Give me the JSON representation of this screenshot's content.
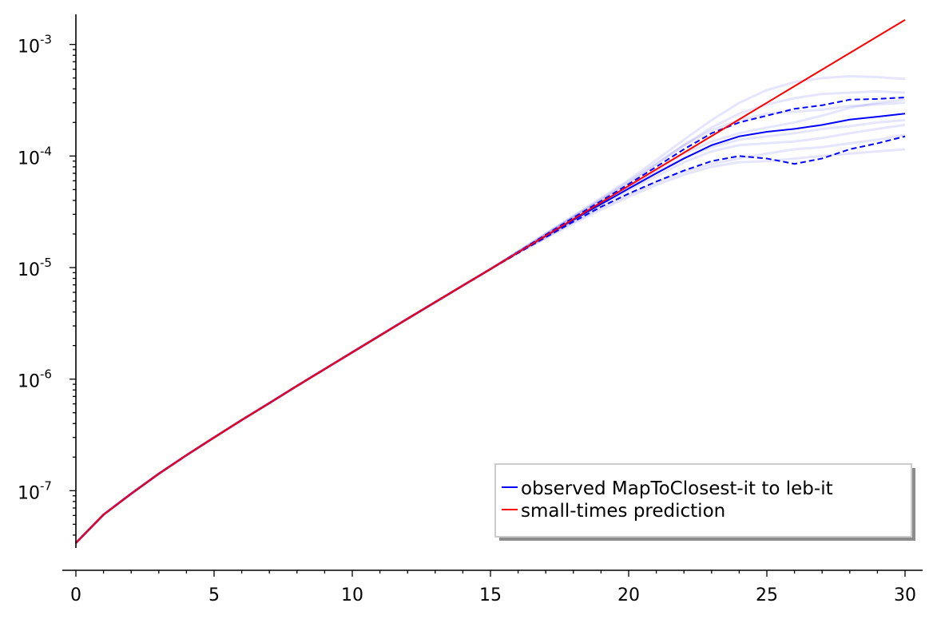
{
  "chart_data": {
    "type": "line",
    "title": "",
    "xlabel": "",
    "ylabel": "",
    "x_scale": "linear",
    "y_scale": "log",
    "xlim": [
      -0.6,
      30.6
    ],
    "ylim": [
      2e-08,
      0.0018
    ],
    "x_ticks_major": [
      0,
      5,
      10,
      15,
      20,
      25,
      30
    ],
    "x_tick_labels": [
      "0",
      "5",
      "10",
      "15",
      "20",
      "25",
      "30"
    ],
    "y_ticks_major": [
      1e-07,
      1e-06,
      1e-05,
      0.0001,
      0.001
    ],
    "y_tick_labels": [
      {
        "base": "10",
        "exp": "-7"
      },
      {
        "base": "10",
        "exp": "-6"
      },
      {
        "base": "10",
        "exp": "-5"
      },
      {
        "base": "10",
        "exp": "-4"
      },
      {
        "base": "10",
        "exp": "-3"
      }
    ],
    "grid": false,
    "legend_position": "bottom-right",
    "legend": [
      {
        "label": "observed MapToClosest-it to leb-it",
        "color": "#0000ff"
      },
      {
        "label": "small-times prediction",
        "color": "#ff0000"
      }
    ],
    "x": [
      0,
      1,
      2,
      3,
      4,
      5,
      6,
      7,
      8,
      9,
      10,
      11,
      12,
      13,
      14,
      15,
      16,
      17,
      18,
      19,
      20,
      21,
      22,
      23,
      24,
      25,
      26,
      27,
      28,
      29,
      30
    ],
    "series": [
      {
        "name": "small-times prediction",
        "color": "#ff0000",
        "style": "solid",
        "values": [
          3.4e-08,
          6.1e-08,
          9.4e-08,
          1.42e-07,
          2.08e-07,
          3e-07,
          4.3e-07,
          6.1e-07,
          8.7e-07,
          1.23e-06,
          1.74e-06,
          2.46e-06,
          3.48e-06,
          4.9e-06,
          6.9e-06,
          9.7e-06,
          1.37e-05,
          1.93e-05,
          2.72e-05,
          3.83e-05,
          5.4e-05,
          7.6e-05,
          0.000107,
          0.000151,
          0.000213,
          0.0003,
          0.000423,
          0.000595,
          0.000838,
          0.00118,
          0.00166
        ]
      },
      {
        "name": "observed MapToClosest-it to leb-it",
        "color": "#0000ff",
        "style": "solid",
        "values": [
          3.4e-08,
          6.1e-08,
          9.4e-08,
          1.42e-07,
          2.08e-07,
          3e-07,
          4.3e-07,
          6.1e-07,
          8.7e-07,
          1.23e-06,
          1.74e-06,
          2.46e-06,
          3.48e-06,
          4.9e-06,
          6.9e-06,
          9.7e-06,
          1.37e-05,
          1.92e-05,
          2.68e-05,
          3.7e-05,
          5.1e-05,
          7e-05,
          9.5e-05,
          0.000125,
          0.00015,
          0.000165,
          0.000175,
          0.00019,
          0.000212,
          0.000225,
          0.00024
        ]
      },
      {
        "name": "",
        "color": "#0000ff",
        "style": "dashed",
        "values": [
          3.4e-08,
          6.1e-08,
          9.4e-08,
          1.42e-07,
          2.08e-07,
          3e-07,
          4.3e-07,
          6.1e-07,
          8.7e-07,
          1.23e-06,
          1.74e-06,
          2.46e-06,
          3.48e-06,
          4.9e-06,
          6.9e-06,
          9.7e-06,
          1.38e-05,
          1.97e-05,
          2.8e-05,
          3.95e-05,
          5.6e-05,
          8e-05,
          0.000115,
          0.00016,
          0.0002,
          0.00023,
          0.000265,
          0.000285,
          0.00032,
          0.000325,
          0.000335
        ]
      },
      {
        "name": "",
        "color": "#0000ff",
        "style": "dashed",
        "values": [
          3.4e-08,
          6.1e-08,
          9.4e-08,
          1.42e-07,
          2.08e-07,
          3e-07,
          4.3e-07,
          6.1e-07,
          8.7e-07,
          1.23e-06,
          1.74e-06,
          2.46e-06,
          3.48e-06,
          4.9e-06,
          6.9e-06,
          9.7e-06,
          1.35e-05,
          1.87e-05,
          2.58e-05,
          3.5e-05,
          4.6e-05,
          5.9e-05,
          7.4e-05,
          9e-05,
          0.0001,
          9.5e-05,
          8.5e-05,
          9.5e-05,
          0.000115,
          0.00013,
          0.00015
        ]
      }
    ],
    "background_series": [
      {
        "color": "#0000ff",
        "opacity": 0.1,
        "values": [
          3.4e-08,
          6.1e-08,
          9.4e-08,
          1.42e-07,
          2.08e-07,
          3e-07,
          4.3e-07,
          6.1e-07,
          8.7e-07,
          1.23e-06,
          1.74e-06,
          2.46e-06,
          3.48e-06,
          4.9e-06,
          6.9e-06,
          9.7e-06,
          1.4e-05,
          2.02e-05,
          2.9e-05,
          4.2e-05,
          6.1e-05,
          9.2e-05,
          0.00014,
          0.00021,
          0.0003,
          0.00039,
          0.00046,
          0.0005,
          0.00052,
          0.00051,
          0.00049
        ]
      },
      {
        "color": "#0000ff",
        "opacity": 0.1,
        "values": [
          3.4e-08,
          6.1e-08,
          9.4e-08,
          1.42e-07,
          2.08e-07,
          3e-07,
          4.3e-07,
          6.1e-07,
          8.7e-07,
          1.23e-06,
          1.74e-06,
          2.46e-06,
          3.48e-06,
          4.9e-06,
          6.9e-06,
          9.7e-06,
          1.39e-05,
          1.99e-05,
          2.85e-05,
          4e-05,
          5.7e-05,
          8.4e-05,
          0.000125,
          0.00018,
          0.00024,
          0.00029,
          0.00033,
          0.00036,
          0.00037,
          0.00038,
          0.00037
        ]
      },
      {
        "color": "#0000ff",
        "opacity": 0.1,
        "values": [
          3.4e-08,
          6.1e-08,
          9.4e-08,
          1.42e-07,
          2.08e-07,
          3e-07,
          4.3e-07,
          6.1e-07,
          8.7e-07,
          1.23e-06,
          1.74e-06,
          2.46e-06,
          3.48e-06,
          4.9e-06,
          6.9e-06,
          9.7e-06,
          1.38e-05,
          1.95e-05,
          2.75e-05,
          3.85e-05,
          5.3e-05,
          7.5e-05,
          0.000105,
          0.000135,
          0.00016,
          0.00018,
          0.0002,
          0.00023,
          0.00027,
          0.0003,
          0.00032
        ]
      },
      {
        "color": "#0000ff",
        "opacity": 0.1,
        "values": [
          3.4e-08,
          6.1e-08,
          9.4e-08,
          1.42e-07,
          2.08e-07,
          3e-07,
          4.3e-07,
          6.1e-07,
          8.7e-07,
          1.23e-06,
          1.74e-06,
          2.46e-06,
          3.48e-06,
          4.9e-06,
          6.9e-06,
          9.7e-06,
          1.37e-05,
          1.9e-05,
          2.65e-05,
          3.6e-05,
          4.9e-05,
          6.6e-05,
          8.8e-05,
          0.00011,
          0.000125,
          0.00013,
          0.000135,
          0.000145,
          0.00016,
          0.000175,
          0.00019
        ]
      },
      {
        "color": "#0000ff",
        "opacity": 0.1,
        "values": [
          3.4e-08,
          6.1e-08,
          9.4e-08,
          1.42e-07,
          2.08e-07,
          3e-07,
          4.3e-07,
          6.1e-07,
          8.7e-07,
          1.23e-06,
          1.74e-06,
          2.46e-06,
          3.48e-06,
          4.9e-06,
          6.9e-06,
          9.7e-06,
          1.36e-05,
          1.86e-05,
          2.55e-05,
          3.45e-05,
          4.5e-05,
          5.8e-05,
          7.2e-05,
          8.5e-05,
          9.5e-05,
          0.000105,
          0.000115,
          0.00012,
          0.00013,
          0.00014,
          0.000155
        ]
      },
      {
        "color": "#0000ff",
        "opacity": 0.1,
        "values": [
          3.4e-08,
          6.1e-08,
          9.4e-08,
          1.42e-07,
          2.08e-07,
          3e-07,
          4.3e-07,
          6.1e-07,
          8.7e-07,
          1.23e-06,
          1.74e-06,
          2.46e-06,
          3.48e-06,
          4.9e-06,
          6.9e-06,
          9.7e-06,
          1.35e-05,
          1.83e-05,
          2.48e-05,
          3.3e-05,
          4.3e-05,
          5.5e-05,
          6.8e-05,
          8e-05,
          8.8e-05,
          9e-05,
          9.5e-05,
          0.0001,
          0.000105,
          0.00011,
          0.000115
        ]
      },
      {
        "color": "#0000ff",
        "opacity": 0.1,
        "values": [
          3.4e-08,
          6.1e-08,
          9.4e-08,
          1.42e-07,
          2.08e-07,
          3e-07,
          4.3e-07,
          6.1e-07,
          8.7e-07,
          1.23e-06,
          1.74e-06,
          2.46e-06,
          3.48e-06,
          4.9e-06,
          6.9e-06,
          9.7e-06,
          1.39e-05,
          2e-05,
          2.88e-05,
          4.1e-05,
          5.9e-05,
          8.6e-05,
          0.000125,
          0.00017,
          0.00021,
          0.00024,
          0.00025,
          0.00026,
          0.00028,
          0.00029,
          0.0003
        ]
      },
      {
        "color": "#0000ff",
        "opacity": 0.1,
        "values": [
          3.4e-08,
          6.1e-08,
          9.4e-08,
          1.42e-07,
          2.08e-07,
          3e-07,
          4.3e-07,
          6.1e-07,
          8.7e-07,
          1.23e-06,
          1.74e-06,
          2.46e-06,
          3.48e-06,
          4.9e-06,
          6.9e-06,
          9.7e-06,
          1.37e-05,
          1.92e-05,
          2.7e-05,
          3.75e-05,
          5.2e-05,
          7.1e-05,
          9.6e-05,
          0.00012,
          0.00014,
          0.00015,
          0.00016,
          0.000175,
          0.000185,
          0.0002,
          0.00021
        ]
      }
    ]
  }
}
